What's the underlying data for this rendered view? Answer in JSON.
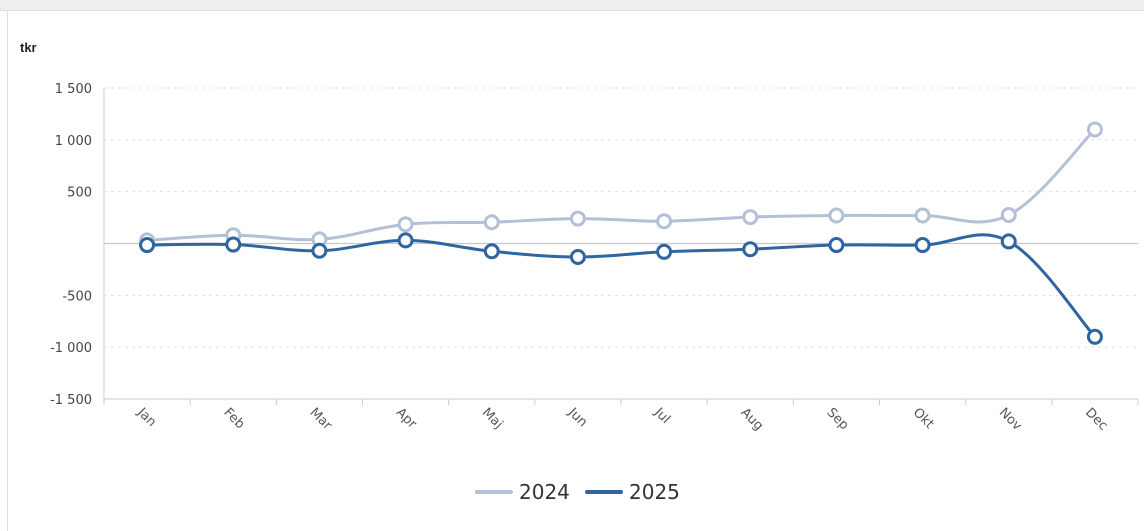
{
  "chart_data": {
    "type": "line",
    "ylabel": "tkr",
    "categories": [
      "Jan",
      "Feb",
      "Mar",
      "Apr",
      "Maj",
      "Jun",
      "Jul",
      "Aug",
      "Sep",
      "Okt",
      "Nov",
      "Dec"
    ],
    "yticks": [
      1500,
      1000,
      500,
      0,
      -500,
      -1000,
      -1500
    ],
    "ytick_labels": [
      "1 500",
      "1 000",
      "500",
      "",
      "-500",
      "-1 000",
      "-1 500"
    ],
    "ylim": [
      -1500,
      1500
    ],
    "grid": true,
    "legend": "bottom",
    "series": [
      {
        "name": "2024",
        "color": "#b4c0d8",
        "values": [
          30,
          80,
          40,
          185,
          205,
          240,
          215,
          255,
          270,
          270,
          275,
          1100
        ]
      },
      {
        "name": "2025",
        "color": "#2f65a0",
        "values": [
          -15,
          -10,
          -70,
          30,
          -75,
          -130,
          -80,
          -55,
          -15,
          -15,
          20,
          -900
        ]
      }
    ]
  }
}
